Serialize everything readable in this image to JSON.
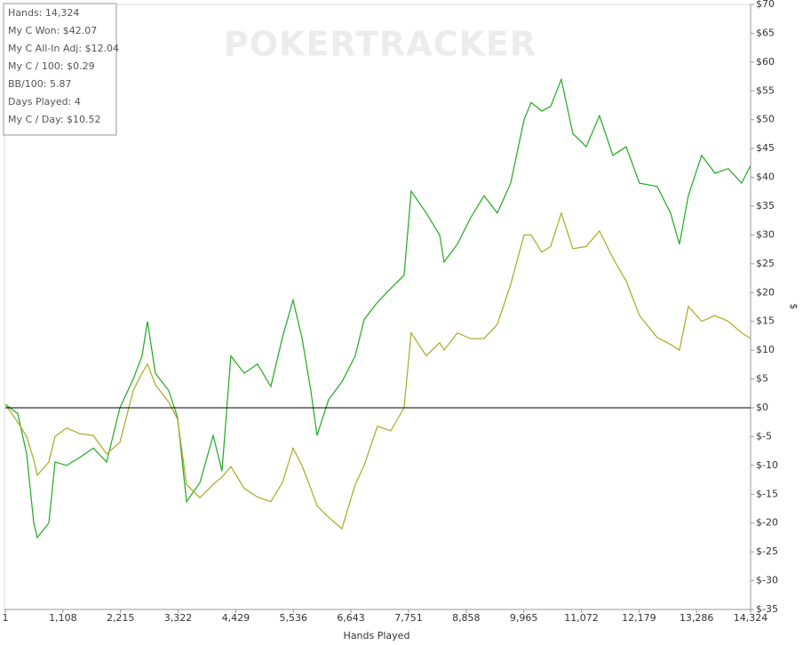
{
  "chart_data": {
    "type": "line",
    "watermark": "POKERTRACKER",
    "stats": [
      "Hands: 14,324",
      "My C Won: $42.07",
      "My C All-In Adj: $12.04",
      "My C / 100: $0.29",
      "BB/100: 5.87",
      "Days Played: 4",
      "My C / Day: $10.52"
    ],
    "x_label": "Hands Played",
    "y_label": "$",
    "xlim": [
      1,
      14324
    ],
    "ylim": [
      -35,
      70
    ],
    "xticks": [
      1,
      {
        "value": 1108,
        "label": "1,108"
      },
      {
        "value": 2215,
        "label": "2,215"
      },
      {
        "value": 3322,
        "label": "3,322"
      },
      {
        "value": 4429,
        "label": "4,429"
      },
      {
        "value": 5536,
        "label": "5,536"
      },
      {
        "value": 6643,
        "label": "6,643"
      },
      {
        "value": 7751,
        "label": "7,751"
      },
      {
        "value": 8858,
        "label": "8,858"
      },
      {
        "value": 9965,
        "label": "9,965"
      },
      {
        "value": 11072,
        "label": "11,072"
      },
      {
        "value": 12179,
        "label": "12,179"
      },
      {
        "value": 13286,
        "label": "13,286"
      },
      {
        "value": 14324,
        "label": "14,324"
      }
    ],
    "yticks": [
      {
        "value": 70,
        "label": "$70"
      },
      {
        "value": 65,
        "label": "$65"
      },
      {
        "value": 60,
        "label": "$60"
      },
      {
        "value": 55,
        "label": "$55"
      },
      {
        "value": 50,
        "label": "$50"
      },
      {
        "value": 45,
        "label": "$45"
      },
      {
        "value": 40,
        "label": "$40"
      },
      {
        "value": 35,
        "label": "$35"
      },
      {
        "value": 30,
        "label": "$30"
      },
      {
        "value": 25,
        "label": "$25"
      },
      {
        "value": 20,
        "label": "$20"
      },
      {
        "value": 15,
        "label": "$15"
      },
      {
        "value": 10,
        "label": "$10"
      },
      {
        "value": 5,
        "label": "$5"
      },
      {
        "value": 0,
        "label": "$0"
      },
      {
        "value": -5,
        "label": "$-5"
      },
      {
        "value": -10,
        "label": "$-10"
      },
      {
        "value": -15,
        "label": "$-15"
      },
      {
        "value": -20,
        "label": "$-20"
      },
      {
        "value": -25,
        "label": "$-25"
      },
      {
        "value": -30,
        "label": "$-30"
      },
      {
        "value": -35,
        "label": "$-35"
      }
    ],
    "y_axis_side": "right",
    "zero_line": true,
    "grid": false,
    "x": [
      1,
      240,
      411,
      547,
      615,
      837,
      957,
      1179,
      1435,
      1691,
      1947,
      2203,
      2459,
      2629,
      2732,
      2885,
      3141,
      3312,
      3483,
      3739,
      3995,
      4165,
      4336,
      4592,
      4848,
      5104,
      5326,
      5531,
      5702,
      5872,
      5992,
      6214,
      6470,
      6726,
      6896,
      7152,
      7408,
      7665,
      7801,
      8091,
      8347,
      8433,
      8689,
      8945,
      9201,
      9457,
      9713,
      9970,
      10106,
      10311,
      10482,
      10686,
      10908,
      11164,
      11420,
      11676,
      11932,
      12188,
      12530,
      12786,
      12956,
      13127,
      13383,
      13639,
      13895,
      14151,
      14324
    ],
    "series": [
      {
        "name": "My C Won",
        "color": "#1faa1f",
        "values": [
          0.6,
          -1,
          -8,
          -20,
          -22.5,
          -20,
          -9.4,
          -10,
          -8.6,
          -7,
          -9.4,
          0,
          5,
          9,
          15,
          6,
          3,
          -1.7,
          -16.3,
          -13,
          -4.8,
          -11,
          9,
          6,
          7.6,
          3.7,
          12.2,
          18.7,
          12.2,
          3,
          -4.8,
          1.4,
          4.5,
          9,
          15.3,
          18.3,
          20.7,
          23,
          37.6,
          33.8,
          30,
          25.3,
          28.4,
          33,
          36.8,
          33.8,
          39,
          50,
          53,
          51.5,
          52.3,
          57,
          47.6,
          45.3,
          50.7,
          43.8,
          45.3,
          39,
          38.4,
          33.8,
          28.4,
          36.8,
          43.8,
          40.7,
          41.5,
          39,
          42.07
        ]
      },
      {
        "name": "My C All-In Adj",
        "color": "#a9a922",
        "values": [
          0.6,
          -2.5,
          -5,
          -9,
          -11.7,
          -9.4,
          -5,
          -3.5,
          -4.5,
          -4.8,
          -8,
          -6,
          3,
          6,
          7.6,
          4,
          1,
          -2,
          -13.3,
          -15.6,
          -13.3,
          -12,
          -10.2,
          -14,
          -15.5,
          -16.3,
          -13,
          -7,
          -10,
          -14,
          -17,
          -19,
          -21,
          -13.3,
          -10,
          -3.2,
          -4,
          0,
          13,
          9,
          11.3,
          10,
          13,
          12,
          12,
          14.5,
          21.4,
          30,
          30,
          27,
          28,
          33.8,
          27.6,
          28,
          30.7,
          26,
          22,
          16,
          12.2,
          11,
          10,
          17.6,
          15,
          16,
          15,
          13,
          12.04
        ]
      }
    ]
  }
}
